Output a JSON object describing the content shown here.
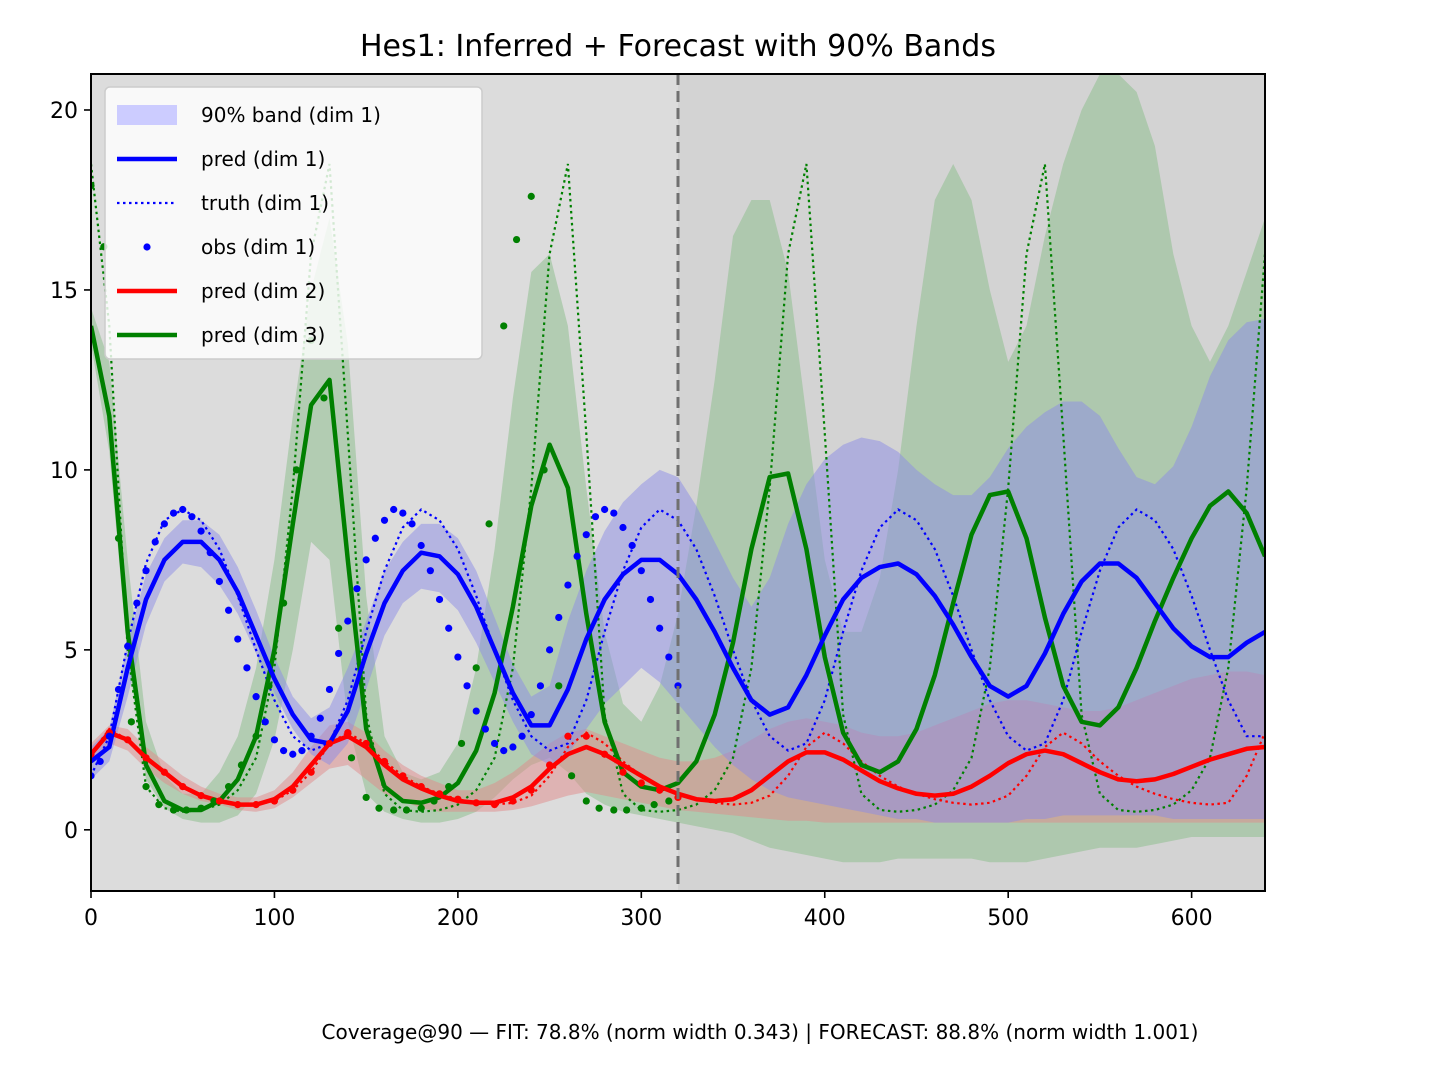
{
  "chart_data": {
    "type": "line",
    "title": "Hes1: Inferred + Forecast with 90% Bands",
    "xlabel": "",
    "ylabel": "",
    "xlim": [
      0,
      640
    ],
    "ylim": [
      -1.7,
      21
    ],
    "x_ticks": [
      0,
      100,
      200,
      300,
      400,
      500,
      600
    ],
    "y_ticks": [
      0,
      5,
      10,
      15,
      20
    ],
    "fit_forecast_split": 320,
    "grid": false,
    "legend_position": "upper-left",
    "colors": {
      "dim1": "#0000ff",
      "dim2": "#ff0000",
      "dim3": "#008000",
      "band1": "#8c8ce6",
      "band2": "#e08a8a",
      "band3": "#8fc08f"
    },
    "legend": [
      {
        "label": "90% band (dim 1)",
        "kind": "band",
        "color": "#ccccff"
      },
      {
        "label": "pred (dim 1)",
        "kind": "line",
        "color": "#0000ff"
      },
      {
        "label": "truth (dim 1)",
        "kind": "dotted",
        "color": "#0000ff"
      },
      {
        "label": "obs (dim 1)",
        "kind": "dot",
        "color": "#0000ff"
      },
      {
        "label": "pred (dim 2)",
        "kind": "line",
        "color": "#ff0000"
      },
      {
        "label": "pred (dim 3)",
        "kind": "line",
        "color": "#008000"
      }
    ],
    "x": [
      0,
      10,
      20,
      30,
      40,
      50,
      60,
      70,
      80,
      90,
      100,
      110,
      120,
      130,
      140,
      150,
      160,
      170,
      180,
      190,
      200,
      210,
      220,
      230,
      240,
      250,
      260,
      270,
      280,
      290,
      300,
      310,
      320,
      330,
      340,
      350,
      360,
      370,
      380,
      390,
      400,
      410,
      420,
      430,
      440,
      450,
      460,
      470,
      480,
      490,
      500,
      510,
      520,
      530,
      540,
      550,
      560,
      570,
      580,
      590,
      600,
      610,
      620,
      630,
      640
    ],
    "series": [
      {
        "name": "pred (dim 1)",
        "pred": [
          1.9,
          2.3,
          4.5,
          6.4,
          7.5,
          8.0,
          8.0,
          7.5,
          6.6,
          5.4,
          4.2,
          3.2,
          2.5,
          2.4,
          3.3,
          4.9,
          6.3,
          7.2,
          7.7,
          7.6,
          7.1,
          6.2,
          5.0,
          3.8,
          2.9,
          2.9,
          3.9,
          5.3,
          6.4,
          7.1,
          7.5,
          7.5,
          7.1,
          6.4,
          5.5,
          4.5,
          3.6,
          3.2,
          3.4,
          4.3,
          5.4,
          6.4,
          7.0,
          7.3,
          7.4,
          7.1,
          6.5,
          5.7,
          4.8,
          4.0,
          3.7,
          4.0,
          4.9,
          6.0,
          6.9,
          7.4,
          7.4,
          7.0,
          6.3,
          5.6,
          5.1,
          4.8,
          4.8,
          5.2,
          5.5
        ],
        "lower": [
          1.4,
          1.9,
          3.7,
          5.7,
          6.9,
          7.4,
          7.3,
          6.8,
          6.0,
          4.9,
          3.8,
          2.8,
          2.1,
          1.8,
          2.4,
          3.9,
          5.4,
          6.3,
          6.7,
          6.6,
          6.1,
          5.2,
          4.1,
          3.0,
          2.1,
          1.8,
          2.1,
          2.8,
          3.5,
          4.0,
          4.5,
          4.1,
          3.5,
          2.9,
          2.3,
          1.8,
          1.4,
          1.1,
          0.9,
          0.8,
          0.7,
          0.6,
          0.5,
          0.4,
          0.3,
          0.3,
          0.2,
          0.2,
          0.2,
          0.2,
          0.2,
          0.3,
          0.3,
          0.4,
          0.4,
          0.4,
          0.4,
          0.4,
          0.4,
          0.3,
          0.3,
          0.3,
          0.3,
          0.3,
          0.3
        ],
        "upper": [
          2.3,
          2.8,
          5.2,
          7.1,
          8.1,
          8.6,
          8.6,
          8.2,
          7.3,
          6.1,
          4.8,
          3.7,
          3.1,
          3.4,
          4.5,
          5.8,
          7.2,
          8.0,
          8.5,
          8.5,
          8.1,
          7.2,
          5.9,
          4.6,
          3.7,
          4.0,
          5.8,
          7.2,
          8.3,
          9.1,
          9.6,
          10.0,
          9.8,
          9.0,
          8.0,
          7.0,
          6.2,
          7.0,
          8.5,
          9.6,
          10.3,
          10.7,
          10.9,
          10.8,
          10.5,
          10.0,
          9.6,
          9.3,
          9.3,
          9.8,
          10.6,
          11.2,
          11.6,
          11.9,
          11.9,
          11.5,
          10.6,
          9.8,
          9.6,
          10.1,
          11.2,
          12.6,
          13.6,
          14.1,
          14.2
        ]
      },
      {
        "name": "truth (dim 1)",
        "values": [
          1.5,
          2.6,
          5.2,
          7.4,
          8.6,
          8.9,
          8.6,
          7.8,
          6.5,
          5.0,
          3.6,
          2.6,
          2.2,
          2.4,
          3.6,
          5.5,
          7.2,
          8.4,
          8.9,
          8.6,
          7.8,
          6.5,
          5.0,
          3.6,
          2.6,
          2.2,
          2.4,
          3.6,
          5.5,
          7.2,
          8.4,
          8.9,
          8.6,
          7.8,
          6.5,
          5.0,
          3.6,
          2.6,
          2.2,
          2.4,
          3.6,
          5.5,
          7.2,
          8.4,
          8.9,
          8.6,
          7.8,
          6.5,
          5.0,
          3.6,
          2.6,
          2.2,
          2.4,
          3.6,
          5.5,
          7.2,
          8.4,
          8.9,
          8.6,
          7.8,
          6.5,
          5.0,
          3.6,
          2.6,
          2.6
        ]
      },
      {
        "name": "pred (dim 2)",
        "pred": [
          2.1,
          2.7,
          2.5,
          2.0,
          1.6,
          1.2,
          0.95,
          0.8,
          0.7,
          0.7,
          0.85,
          1.2,
          1.8,
          2.4,
          2.6,
          2.3,
          1.8,
          1.4,
          1.15,
          0.95,
          0.8,
          0.75,
          0.75,
          0.9,
          1.2,
          1.7,
          2.1,
          2.3,
          2.1,
          1.8,
          1.5,
          1.2,
          1.0,
          0.85,
          0.8,
          0.85,
          1.1,
          1.5,
          1.9,
          2.15,
          2.15,
          1.95,
          1.65,
          1.35,
          1.15,
          1.0,
          0.95,
          1.0,
          1.2,
          1.5,
          1.85,
          2.1,
          2.2,
          2.1,
          1.85,
          1.6,
          1.4,
          1.35,
          1.4,
          1.55,
          1.75,
          1.95,
          2.1,
          2.25,
          2.3
        ],
        "lower": [
          1.9,
          2.4,
          2.2,
          1.7,
          1.3,
          1.0,
          0.8,
          0.7,
          0.55,
          0.5,
          0.6,
          0.9,
          1.3,
          1.7,
          1.8,
          1.4,
          1.0,
          0.8,
          0.6,
          0.5,
          0.5,
          0.5,
          0.5,
          0.55,
          0.65,
          0.8,
          0.95,
          1.05,
          0.95,
          0.85,
          0.75,
          0.65,
          0.55,
          0.5,
          0.45,
          0.4,
          0.35,
          0.3,
          0.25,
          0.25,
          0.2,
          0.2,
          0.2,
          0.2,
          0.2,
          0.2,
          0.2,
          0.2,
          0.2,
          0.2,
          0.2,
          0.2,
          0.2,
          0.2,
          0.2,
          0.2,
          0.2,
          0.2,
          0.2,
          0.2,
          0.2,
          0.2,
          0.2,
          0.2,
          0.2
        ],
        "upper": [
          2.4,
          2.9,
          2.8,
          2.3,
          1.9,
          1.5,
          1.2,
          1.0,
          0.9,
          0.9,
          1.1,
          1.6,
          2.3,
          2.9,
          3.0,
          2.7,
          2.2,
          1.8,
          1.5,
          1.3,
          1.1,
          1.1,
          1.3,
          1.6,
          2.0,
          2.4,
          2.7,
          2.8,
          2.6,
          2.4,
          2.2,
          2.0,
          1.9,
          1.9,
          2.0,
          2.2,
          2.5,
          2.8,
          3.0,
          3.1,
          3.0,
          2.9,
          2.7,
          2.6,
          2.6,
          2.7,
          2.9,
          3.1,
          3.3,
          3.5,
          3.6,
          3.6,
          3.5,
          3.4,
          3.3,
          3.3,
          3.4,
          3.6,
          3.8,
          4.0,
          4.2,
          4.3,
          4.4,
          4.4,
          4.3
        ]
      },
      {
        "name": "truth (dim 2)",
        "values": [
          2.1,
          2.8,
          2.5,
          2.0,
          1.6,
          1.2,
          0.95,
          0.8,
          0.7,
          0.7,
          0.8,
          1.1,
          1.6,
          2.4,
          2.7,
          2.4,
          1.9,
          1.5,
          1.2,
          1.0,
          0.85,
          0.75,
          0.7,
          0.75,
          0.95,
          1.5,
          2.3,
          2.7,
          2.4,
          1.9,
          1.5,
          1.2,
          1.0,
          0.85,
          0.75,
          0.7,
          0.75,
          0.95,
          1.5,
          2.3,
          2.7,
          2.4,
          1.9,
          1.5,
          1.2,
          1.0,
          0.85,
          0.75,
          0.7,
          0.75,
          0.95,
          1.5,
          2.3,
          2.7,
          2.4,
          1.9,
          1.5,
          1.2,
          1.0,
          0.85,
          0.75,
          0.7,
          0.75,
          1.5,
          2.7
        ]
      },
      {
        "name": "pred (dim 3)",
        "pred": [
          14.0,
          11.5,
          5.5,
          1.8,
          0.8,
          0.55,
          0.55,
          0.8,
          1.4,
          2.6,
          5.0,
          8.5,
          11.8,
          12.5,
          7.5,
          2.8,
          1.2,
          0.8,
          0.75,
          0.9,
          1.3,
          2.2,
          3.8,
          6.2,
          9.0,
          10.7,
          9.5,
          6.0,
          3.0,
          1.6,
          1.2,
          1.1,
          1.3,
          1.9,
          3.2,
          5.2,
          7.8,
          9.8,
          9.9,
          7.8,
          4.8,
          2.7,
          1.8,
          1.6,
          1.9,
          2.8,
          4.3,
          6.3,
          8.2,
          9.3,
          9.4,
          8.1,
          5.9,
          4.0,
          3.0,
          2.9,
          3.4,
          4.5,
          5.8,
          7.0,
          8.1,
          9.0,
          9.4,
          8.8,
          7.6
        ],
        "lower": [
          13.5,
          10.5,
          4.8,
          1.4,
          0.6,
          0.3,
          0.2,
          0.2,
          0.4,
          1.0,
          2.5,
          5.0,
          8.0,
          7.5,
          3.0,
          1.0,
          0.5,
          0.3,
          0.2,
          0.2,
          0.3,
          0.5,
          0.9,
          1.4,
          1.8,
          2.0,
          1.6,
          1.0,
          0.7,
          0.5,
          0.4,
          0.3,
          0.2,
          0.1,
          0.0,
          -0.1,
          -0.3,
          -0.5,
          -0.6,
          -0.7,
          -0.8,
          -0.9,
          -0.9,
          -0.9,
          -0.8,
          -0.8,
          -0.8,
          -0.8,
          -0.8,
          -0.9,
          -0.9,
          -0.9,
          -0.8,
          -0.7,
          -0.6,
          -0.5,
          -0.5,
          -0.5,
          -0.4,
          -0.3,
          -0.2,
          -0.2,
          -0.2,
          -0.2,
          -0.2
        ],
        "upper": [
          14.5,
          13.0,
          7.5,
          3.0,
          1.5,
          1.0,
          1.0,
          1.6,
          2.6,
          4.5,
          7.5,
          11.5,
          15.0,
          17.0,
          13.5,
          6.5,
          2.6,
          1.6,
          1.4,
          1.6,
          2.4,
          4.5,
          7.8,
          12.0,
          15.5,
          16.0,
          14.0,
          9.5,
          5.5,
          3.5,
          3.0,
          4.0,
          6.0,
          9.0,
          12.5,
          16.5,
          17.5,
          17.5,
          15.5,
          11.5,
          7.5,
          5.5,
          5.5,
          7.0,
          10.0,
          14.0,
          17.5,
          18.5,
          17.5,
          15.0,
          13.0,
          14.0,
          16.5,
          18.5,
          20.0,
          21.0,
          21.0,
          20.5,
          19.0,
          16.0,
          14.0,
          13.0,
          14.0,
          15.5,
          17.0
        ]
      },
      {
        "name": "truth (dim 3)",
        "values": [
          18.5,
          14.0,
          5.0,
          1.2,
          0.6,
          0.5,
          0.55,
          0.7,
          1.1,
          2.0,
          4.5,
          9.5,
          16.0,
          18.5,
          11.0,
          3.2,
          1.0,
          0.55,
          0.5,
          0.55,
          0.7,
          1.1,
          2.0,
          4.5,
          9.5,
          16.0,
          18.5,
          11.0,
          3.2,
          1.0,
          0.55,
          0.5,
          0.55,
          0.7,
          1.1,
          2.0,
          4.5,
          9.5,
          16.0,
          18.5,
          11.0,
          3.2,
          1.0,
          0.55,
          0.5,
          0.55,
          0.7,
          1.1,
          2.0,
          4.5,
          9.5,
          16.0,
          18.5,
          11.0,
          3.2,
          1.0,
          0.55,
          0.5,
          0.55,
          0.7,
          1.1,
          2.0,
          4.5,
          9.5,
          16.0
        ]
      }
    ],
    "observations": {
      "dim1_x": [
        0,
        5,
        10,
        15,
        20,
        25,
        30,
        35,
        40,
        45,
        50,
        55,
        60,
        65,
        70,
        75,
        80,
        85,
        90,
        95,
        100,
        105,
        110,
        115,
        120,
        125,
        130,
        135,
        140,
        145,
        150,
        155,
        160,
        165,
        170,
        175,
        180,
        185,
        190,
        195,
        200,
        205,
        210,
        215,
        220,
        225,
        230,
        235,
        240,
        245,
        250,
        255,
        260,
        265,
        270,
        275,
        280,
        285,
        290,
        295,
        300,
        305,
        310,
        315,
        320
      ],
      "dim1_y": [
        1.5,
        1.9,
        2.6,
        3.9,
        5.1,
        6.3,
        7.2,
        8.0,
        8.5,
        8.8,
        8.9,
        8.7,
        8.3,
        7.7,
        6.9,
        6.1,
        5.3,
        4.5,
        3.7,
        3.0,
        2.5,
        2.2,
        2.1,
        2.2,
        2.6,
        3.1,
        3.9,
        4.9,
        5.8,
        6.7,
        7.5,
        8.1,
        8.6,
        8.9,
        8.8,
        8.5,
        7.9,
        7.2,
        6.4,
        5.6,
        4.8,
        4.0,
        3.3,
        2.8,
        2.4,
        2.2,
        2.3,
        2.6,
        3.2,
        4.0,
        5.0,
        5.9,
        6.8,
        7.6,
        8.2,
        8.7,
        8.9,
        8.8,
        8.4,
        7.9,
        7.2,
        6.4,
        5.6,
        4.8,
        4.0
      ],
      "dim2_x": [
        0,
        10,
        20,
        30,
        40,
        50,
        60,
        70,
        80,
        90,
        100,
        110,
        120,
        130,
        140,
        150,
        160,
        170,
        180,
        190,
        200,
        210,
        220,
        230,
        240,
        250,
        260,
        270,
        280,
        290,
        300,
        310,
        320
      ],
      "dim2_y": [
        2.1,
        2.7,
        2.5,
        2.0,
        1.6,
        1.2,
        0.95,
        0.8,
        0.7,
        0.7,
        0.8,
        1.1,
        1.6,
        2.4,
        2.7,
        2.4,
        1.9,
        1.5,
        1.2,
        1.0,
        0.85,
        0.75,
        0.7,
        0.8,
        1.1,
        1.8,
        2.6,
        2.6,
        2.1,
        1.6,
        1.3,
        1.1,
        0.9
      ],
      "dim3_x": [
        0,
        7,
        15,
        22,
        30,
        37,
        45,
        52,
        60,
        67,
        75,
        82,
        90,
        97,
        105,
        112,
        120,
        127,
        135,
        142,
        150,
        157,
        165,
        172,
        180,
        187,
        195,
        202,
        210,
        217,
        225,
        232,
        240,
        247,
        255,
        262,
        270,
        277,
        285,
        292,
        300,
        307,
        315
      ],
      "dim3_y": [
        17.9,
        16.2,
        8.1,
        3.0,
        1.2,
        0.7,
        0.55,
        0.55,
        0.6,
        0.8,
        1.2,
        1.8,
        2.6,
        4.0,
        6.3,
        10.0,
        13.6,
        12.0,
        5.6,
        2.0,
        0.9,
        0.6,
        0.55,
        0.55,
        0.6,
        0.8,
        1.2,
        2.4,
        4.5,
        8.5,
        14.0,
        16.4,
        17.6,
        10.0,
        4.0,
        1.5,
        0.8,
        0.6,
        0.55,
        0.55,
        0.6,
        0.7,
        0.8
      ]
    },
    "footer": "Coverage@90 — FIT: 78.8% (norm width 0.343) | FORECAST: 88.8% (norm width 1.001)"
  }
}
